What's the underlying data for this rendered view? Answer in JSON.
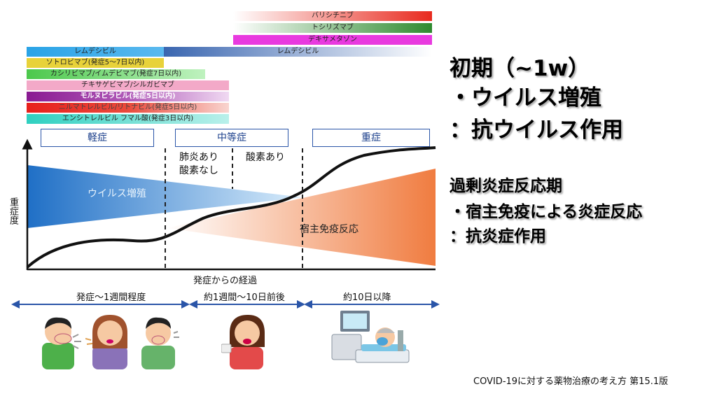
{
  "drug_bars": {
    "baricitinib": "バリシチニブ",
    "tocilizumab": "トシリズマブ",
    "dexamethasone": "デキサメタゾン",
    "remdesivir_1": "レムデシビル",
    "remdesivir_2": "レムデシビル",
    "sotrovimab": "ソトロビマブ(発症5～7日以内)",
    "casirivimab": "カシリビマブ/イムデビマブ(発症7日以内)",
    "tixagevimab": "チキサゲビマブ/シルガビマブ",
    "molnupiravir": "モルヌピラビル(発症5日以内)",
    "nirmatrelvir": "ニルマトレルビル/リトナビル(発症5日以内)",
    "ensitrelvir": "エンシトレルビル フマル酸(発症3日以内)"
  },
  "phases": {
    "mild": "軽症",
    "moderate": "中等症",
    "severe": "重症"
  },
  "moderate_sub": {
    "a_line1": "肺炎あり",
    "a_line2": "酸素なし",
    "b": "酸素あり"
  },
  "diagram": {
    "y_axis_label": "重症度",
    "x_axis_label": "発症からの経過",
    "virus_label": "ウイルス増殖",
    "immune_label": "宿主免疫反応"
  },
  "timeline": {
    "t1": "発症～1週間程度",
    "t2": "約1週間～10日前後",
    "t3": "約10日以降"
  },
  "right_text": {
    "l1": "初期（~1w）",
    "l2": "・ウイルス増殖",
    "l3": "：抗ウイルス作用",
    "l4": "過剰炎症反応期",
    "l5": "・宿主免疫による炎症反応",
    "l6": "：抗炎症作用"
  },
  "footer": "COVID-19に対する薬物治療の考え方 第15.1版",
  "colors": {
    "accent_blue": "#2a55a8",
    "virus_blue": "#2f7fd0",
    "immune_orange": "#f08550"
  }
}
